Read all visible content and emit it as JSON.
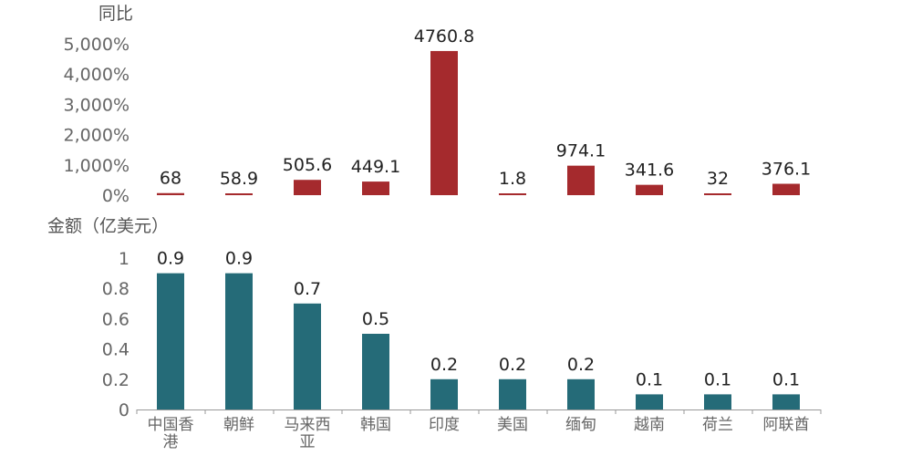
{
  "chart_data": [
    {
      "type": "bar",
      "ylabel": "同比",
      "categories": [
        "中国香港",
        "朝鲜",
        "马来西亚",
        "韩国",
        "印度",
        "美国",
        "缅甸",
        "越南",
        "荷兰",
        "阿联酋"
      ],
      "values": [
        68,
        58.9,
        505.6,
        449.1,
        4760.8,
        1.8,
        974.1,
        341.6,
        32,
        376.1
      ],
      "data_labels": [
        "68",
        "58.9",
        "505.6",
        "449.1",
        "4760.8",
        "1.8",
        "974.1",
        "341.6",
        "32",
        "376.1"
      ],
      "ylim": [
        0,
        5000
      ],
      "yticks": [
        "0%",
        "1,000%",
        "2,000%",
        "3,000%",
        "4,000%",
        "5,000%"
      ],
      "ytick_values": [
        0,
        1000,
        2000,
        3000,
        4000,
        5000
      ],
      "color": "#a52a2d",
      "grid": false
    },
    {
      "type": "bar",
      "ylabel": "金额（亿美元）",
      "categories": [
        "中国香港",
        "朝鲜",
        "马来西亚",
        "韩国",
        "印度",
        "美国",
        "缅甸",
        "越南",
        "荷兰",
        "阿联酋"
      ],
      "category_lines": [
        [
          "中国香",
          "港"
        ],
        [
          "朝鲜"
        ],
        [
          "马来西",
          "亚"
        ],
        [
          "韩国"
        ],
        [
          "印度"
        ],
        [
          "美国"
        ],
        [
          "缅甸"
        ],
        [
          "越南"
        ],
        [
          "荷兰"
        ],
        [
          "阿联酋"
        ]
      ],
      "values": [
        0.9,
        0.9,
        0.7,
        0.5,
        0.2,
        0.2,
        0.2,
        0.1,
        0.1,
        0.1
      ],
      "data_labels": [
        "0.9",
        "0.9",
        "0.7",
        "0.5",
        "0.2",
        "0.2",
        "0.2",
        "0.1",
        "0.1",
        "0.1"
      ],
      "ylim": [
        0,
        1
      ],
      "yticks": [
        "0",
        "0.2",
        "0.4",
        "0.6",
        "0.8",
        "1"
      ],
      "ytick_values": [
        0,
        0.2,
        0.4,
        0.6,
        0.8,
        1
      ],
      "color": "#256b78",
      "grid": false
    }
  ]
}
